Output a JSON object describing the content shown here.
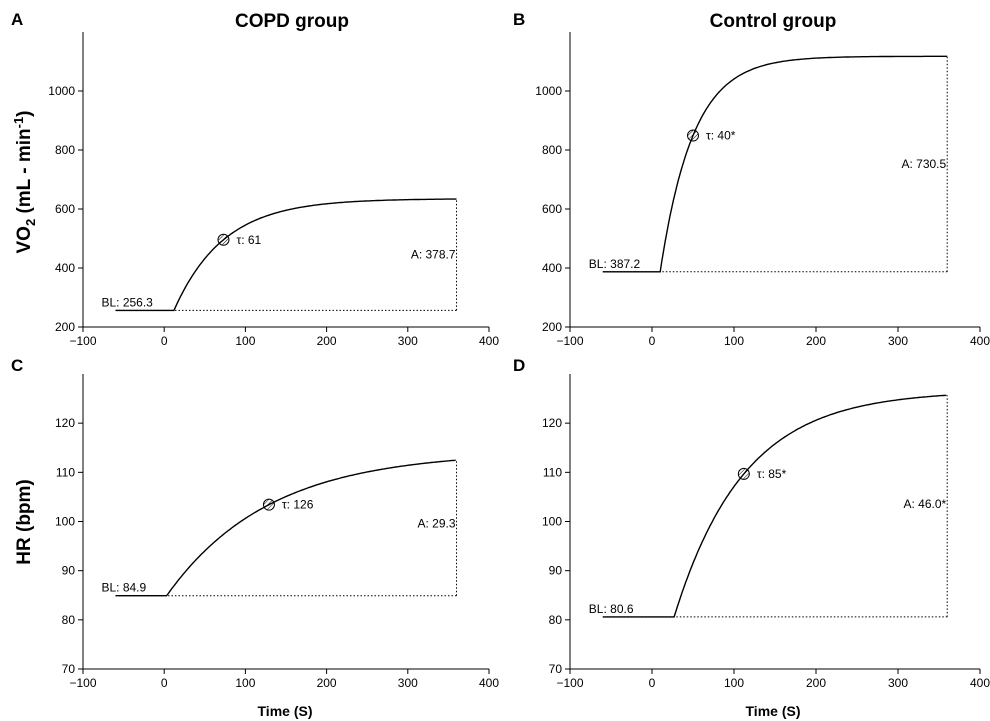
{
  "figure": {
    "columns": [
      {
        "title": "COPD group"
      },
      {
        "title": "Control group"
      }
    ],
    "ylabels": [
      {
        "main": "VO",
        "sub": "2",
        "rest": " (mL - min",
        "sup": "-1",
        "end": ")"
      },
      {
        "main": "HR (bpm)",
        "sub": "",
        "rest": "",
        "sup": "",
        "end": ""
      }
    ],
    "xlabel": "Time (S)"
  },
  "chart_data": [
    {
      "panel": "A",
      "type": "line",
      "xlim": [
        -100,
        400
      ],
      "ylim": [
        200,
        1200
      ],
      "xticks": [
        -100,
        0,
        100,
        200,
        300,
        400
      ],
      "yticks": [
        200,
        400,
        600,
        800,
        1000
      ],
      "baseline": {
        "value": 256.3,
        "label": "BL: 256.3",
        "x_start": -60
      },
      "time_delay": 12,
      "tau": {
        "value": 61,
        "label": "τ: 61"
      },
      "amplitude": {
        "value": 378.7,
        "label": "A: 378.7"
      },
      "x_end": 360
    },
    {
      "panel": "B",
      "type": "line",
      "xlim": [
        -100,
        400
      ],
      "ylim": [
        200,
        1200
      ],
      "xticks": [
        -100,
        0,
        100,
        200,
        300,
        400
      ],
      "yticks": [
        200,
        400,
        600,
        800,
        1000
      ],
      "baseline": {
        "value": 387.2,
        "label": "BL: 387.2",
        "x_start": -60
      },
      "time_delay": 10,
      "tau": {
        "value": 40,
        "label": "τ: 40*"
      },
      "amplitude": {
        "value": 730.5,
        "label": "A: 730.5"
      },
      "x_end": 360
    },
    {
      "panel": "C",
      "type": "line",
      "xlim": [
        -100,
        400
      ],
      "ylim": [
        70,
        130
      ],
      "xticks": [
        -100,
        0,
        100,
        200,
        300,
        400
      ],
      "yticks": [
        70,
        80,
        90,
        100,
        110,
        120
      ],
      "baseline": {
        "value": 84.9,
        "label": "BL: 84.9",
        "x_start": -60
      },
      "time_delay": 3,
      "tau": {
        "value": 126,
        "label": "τ: 126"
      },
      "amplitude": {
        "value": 29.3,
        "label": "A: 29.3"
      },
      "x_end": 360
    },
    {
      "panel": "D",
      "type": "line",
      "xlim": [
        -100,
        400
      ],
      "ylim": [
        70,
        130
      ],
      "xticks": [
        -100,
        0,
        100,
        200,
        300,
        400
      ],
      "yticks": [
        70,
        80,
        90,
        100,
        110,
        120
      ],
      "baseline": {
        "value": 80.6,
        "label": "BL: 80.6",
        "x_start": -60
      },
      "time_delay": 27,
      "tau": {
        "value": 85,
        "label": "τ: 85*"
      },
      "amplitude": {
        "value": 46.0,
        "label": "A: 46.0*"
      },
      "x_end": 360
    }
  ]
}
